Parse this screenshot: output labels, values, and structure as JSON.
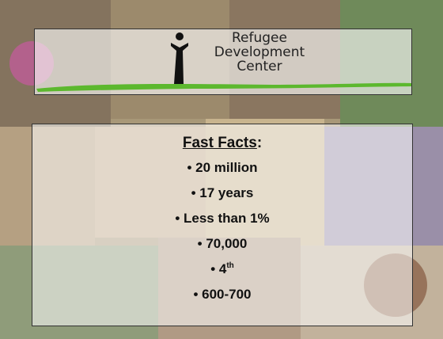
{
  "logo": {
    "lines": [
      "Refugee",
      "Development",
      "Center"
    ]
  },
  "facts": {
    "heading": {
      "text": "Fast Facts",
      "suffix": ":"
    },
    "items": [
      {
        "text": "• 20 million"
      },
      {
        "text": "• 17 years"
      },
      {
        "text": "• Less than 1%"
      },
      {
        "text": "• 70,000"
      },
      {
        "text": "• 4",
        "sup": "th"
      },
      {
        "text": "• 600-700"
      }
    ]
  }
}
